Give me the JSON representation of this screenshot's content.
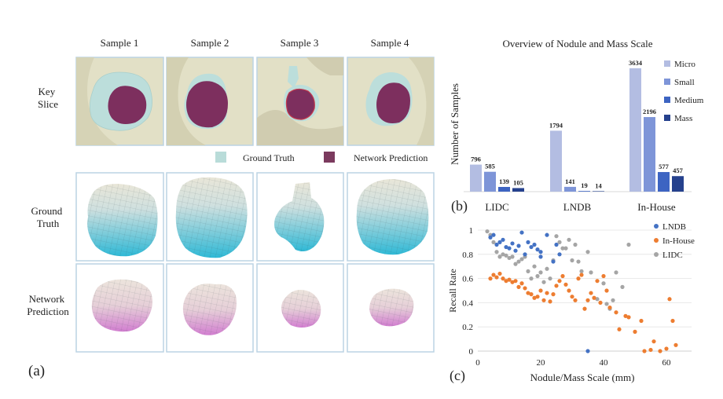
{
  "panel_a": {
    "label": "(a)",
    "columns": [
      "Sample 1",
      "Sample 2",
      "Sample 3",
      "Sample 4"
    ],
    "rows": [
      {
        "label_lines": [
          "Key",
          "Slice"
        ]
      },
      {
        "label_lines": [
          "Ground",
          "Truth"
        ]
      },
      {
        "label_lines": [
          "Network",
          "Prediction"
        ]
      }
    ],
    "legend": [
      {
        "label": "Ground Truth",
        "color": "#b9dcd9"
      },
      {
        "label": "Network Prediction",
        "color": "#7b3a5e"
      }
    ],
    "colors": {
      "slice_bg": "#e2e0c6",
      "ground_truth": "#bcdedb",
      "prediction": "#7d2f5e",
      "frame": "#bcd4e4",
      "gt_top": "#e9e6d8",
      "gt_bottom": "#2fb9d6",
      "pred_top": "#ece4dc",
      "pred_bottom": "#d27ed0"
    }
  },
  "chart_data": [
    {
      "type": "bar",
      "panel_label": "(b)",
      "title": "Overview of Nodule and Mass Scale",
      "ylabel": "Number of Samples",
      "categories": [
        "LIDC",
        "LNDB",
        "In-House"
      ],
      "series": [
        {
          "name": "Micro",
          "color": "#b3bde2",
          "values": [
            796,
            1794,
            3634
          ]
        },
        {
          "name": "Small",
          "color": "#7e95d8",
          "values": [
            585,
            141,
            2196
          ]
        },
        {
          "name": "Medium",
          "color": "#3d64c2",
          "values": [
            139,
            19,
            577
          ]
        },
        {
          "name": "Mass",
          "color": "#25418d",
          "values": [
            105,
            14,
            457
          ]
        }
      ],
      "ylim": [
        0,
        3700
      ],
      "legend_position": "right"
    },
    {
      "type": "scatter",
      "panel_label": "(c)",
      "xlabel": "Nodule/Mass Scale (mm)",
      "ylabel": "Recall Rate",
      "xlim": [
        0,
        68
      ],
      "ylim": [
        0,
        1
      ],
      "xticks": [
        "0",
        "20",
        "40",
        "60"
      ],
      "yticks": [
        "0",
        "0.2",
        "0.4",
        "0.6",
        "0.8",
        "1"
      ],
      "legend_position": "top-right",
      "series": [
        {
          "name": "LNDB",
          "color": "#4472c4",
          "points": [
            [
              4,
              0.94
            ],
            [
              5,
              0.96
            ],
            [
              6,
              0.88
            ],
            [
              7,
              0.9
            ],
            [
              8,
              0.92
            ],
            [
              9,
              0.86
            ],
            [
              10,
              0.85
            ],
            [
              11,
              0.89
            ],
            [
              12,
              0.83
            ],
            [
              13,
              0.87
            ],
            [
              14,
              0.98
            ],
            [
              15,
              0.8
            ],
            [
              16,
              0.9
            ],
            [
              17,
              0.86
            ],
            [
              18,
              0.88
            ],
            [
              19,
              0.84
            ],
            [
              20,
              0.82
            ],
            [
              22,
              0.96
            ],
            [
              24,
              0.74
            ],
            [
              25,
              0.88
            ],
            [
              26,
              0.8
            ],
            [
              20,
              0.78
            ],
            [
              35,
              0
            ]
          ]
        },
        {
          "name": "In-House",
          "color": "#ed7d31",
          "points": [
            [
              4,
              0.6
            ],
            [
              5,
              0.63
            ],
            [
              6,
              0.61
            ],
            [
              7,
              0.64
            ],
            [
              8,
              0.6
            ],
            [
              9,
              0.58
            ],
            [
              10,
              0.59
            ],
            [
              11,
              0.57
            ],
            [
              12,
              0.58
            ],
            [
              13,
              0.53
            ],
            [
              14,
              0.56
            ],
            [
              15,
              0.52
            ],
            [
              16,
              0.48
            ],
            [
              17,
              0.47
            ],
            [
              18,
              0.44
            ],
            [
              19,
              0.45
            ],
            [
              20,
              0.5
            ],
            [
              21,
              0.42
            ],
            [
              22,
              0.48
            ],
            [
              23,
              0.41
            ],
            [
              24,
              0.47
            ],
            [
              25,
              0.54
            ],
            [
              26,
              0.58
            ],
            [
              27,
              0.62
            ],
            [
              28,
              0.55
            ],
            [
              29,
              0.5
            ],
            [
              30,
              0.45
            ],
            [
              31,
              0.42
            ],
            [
              32,
              0.6
            ],
            [
              33,
              0.63
            ],
            [
              34,
              0.35
            ],
            [
              35,
              0.42
            ],
            [
              36,
              0.48
            ],
            [
              37,
              0.44
            ],
            [
              38,
              0.58
            ],
            [
              39,
              0.4
            ],
            [
              40,
              0.62
            ],
            [
              41,
              0.5
            ],
            [
              42,
              0.36
            ],
            [
              44,
              0.32
            ],
            [
              45,
              0.18
            ],
            [
              47,
              0.29
            ],
            [
              48,
              0.28
            ],
            [
              50,
              0.16
            ],
            [
              52,
              0.25
            ],
            [
              53,
              0.0
            ],
            [
              55,
              0.01
            ],
            [
              56,
              0.08
            ],
            [
              58,
              0.0
            ],
            [
              60,
              0.02
            ],
            [
              61,
              0.43
            ],
            [
              62,
              0.25
            ],
            [
              63,
              0.05
            ]
          ]
        },
        {
          "name": "LIDC",
          "color": "#a5a5a5",
          "points": [
            [
              3,
              0.99
            ],
            [
              4,
              0.96
            ],
            [
              5,
              0.9
            ],
            [
              6,
              0.82
            ],
            [
              7,
              0.78
            ],
            [
              8,
              0.8
            ],
            [
              9,
              0.79
            ],
            [
              10,
              0.77
            ],
            [
              11,
              0.78
            ],
            [
              12,
              0.72
            ],
            [
              13,
              0.74
            ],
            [
              14,
              0.76
            ],
            [
              15,
              0.78
            ],
            [
              16,
              0.66
            ],
            [
              17,
              0.6
            ],
            [
              18,
              0.7
            ],
            [
              19,
              0.62
            ],
            [
              20,
              0.65
            ],
            [
              21,
              0.57
            ],
            [
              22,
              0.68
            ],
            [
              23,
              0.6
            ],
            [
              24,
              0.75
            ],
            [
              25,
              0.95
            ],
            [
              26,
              0.9
            ],
            [
              27,
              0.85
            ],
            [
              28,
              0.85
            ],
            [
              29,
              0.92
            ],
            [
              30,
              0.75
            ],
            [
              31,
              0.88
            ],
            [
              32,
              0.74
            ],
            [
              33,
              0.66
            ],
            [
              35,
              0.82
            ],
            [
              36,
              0.65
            ],
            [
              38,
              0.43
            ],
            [
              40,
              0.56
            ],
            [
              41,
              0.39
            ],
            [
              42,
              0.35
            ],
            [
              43,
              0.42
            ],
            [
              44,
              0.65
            ],
            [
              46,
              0.53
            ],
            [
              48,
              0.88
            ]
          ]
        }
      ]
    }
  ]
}
